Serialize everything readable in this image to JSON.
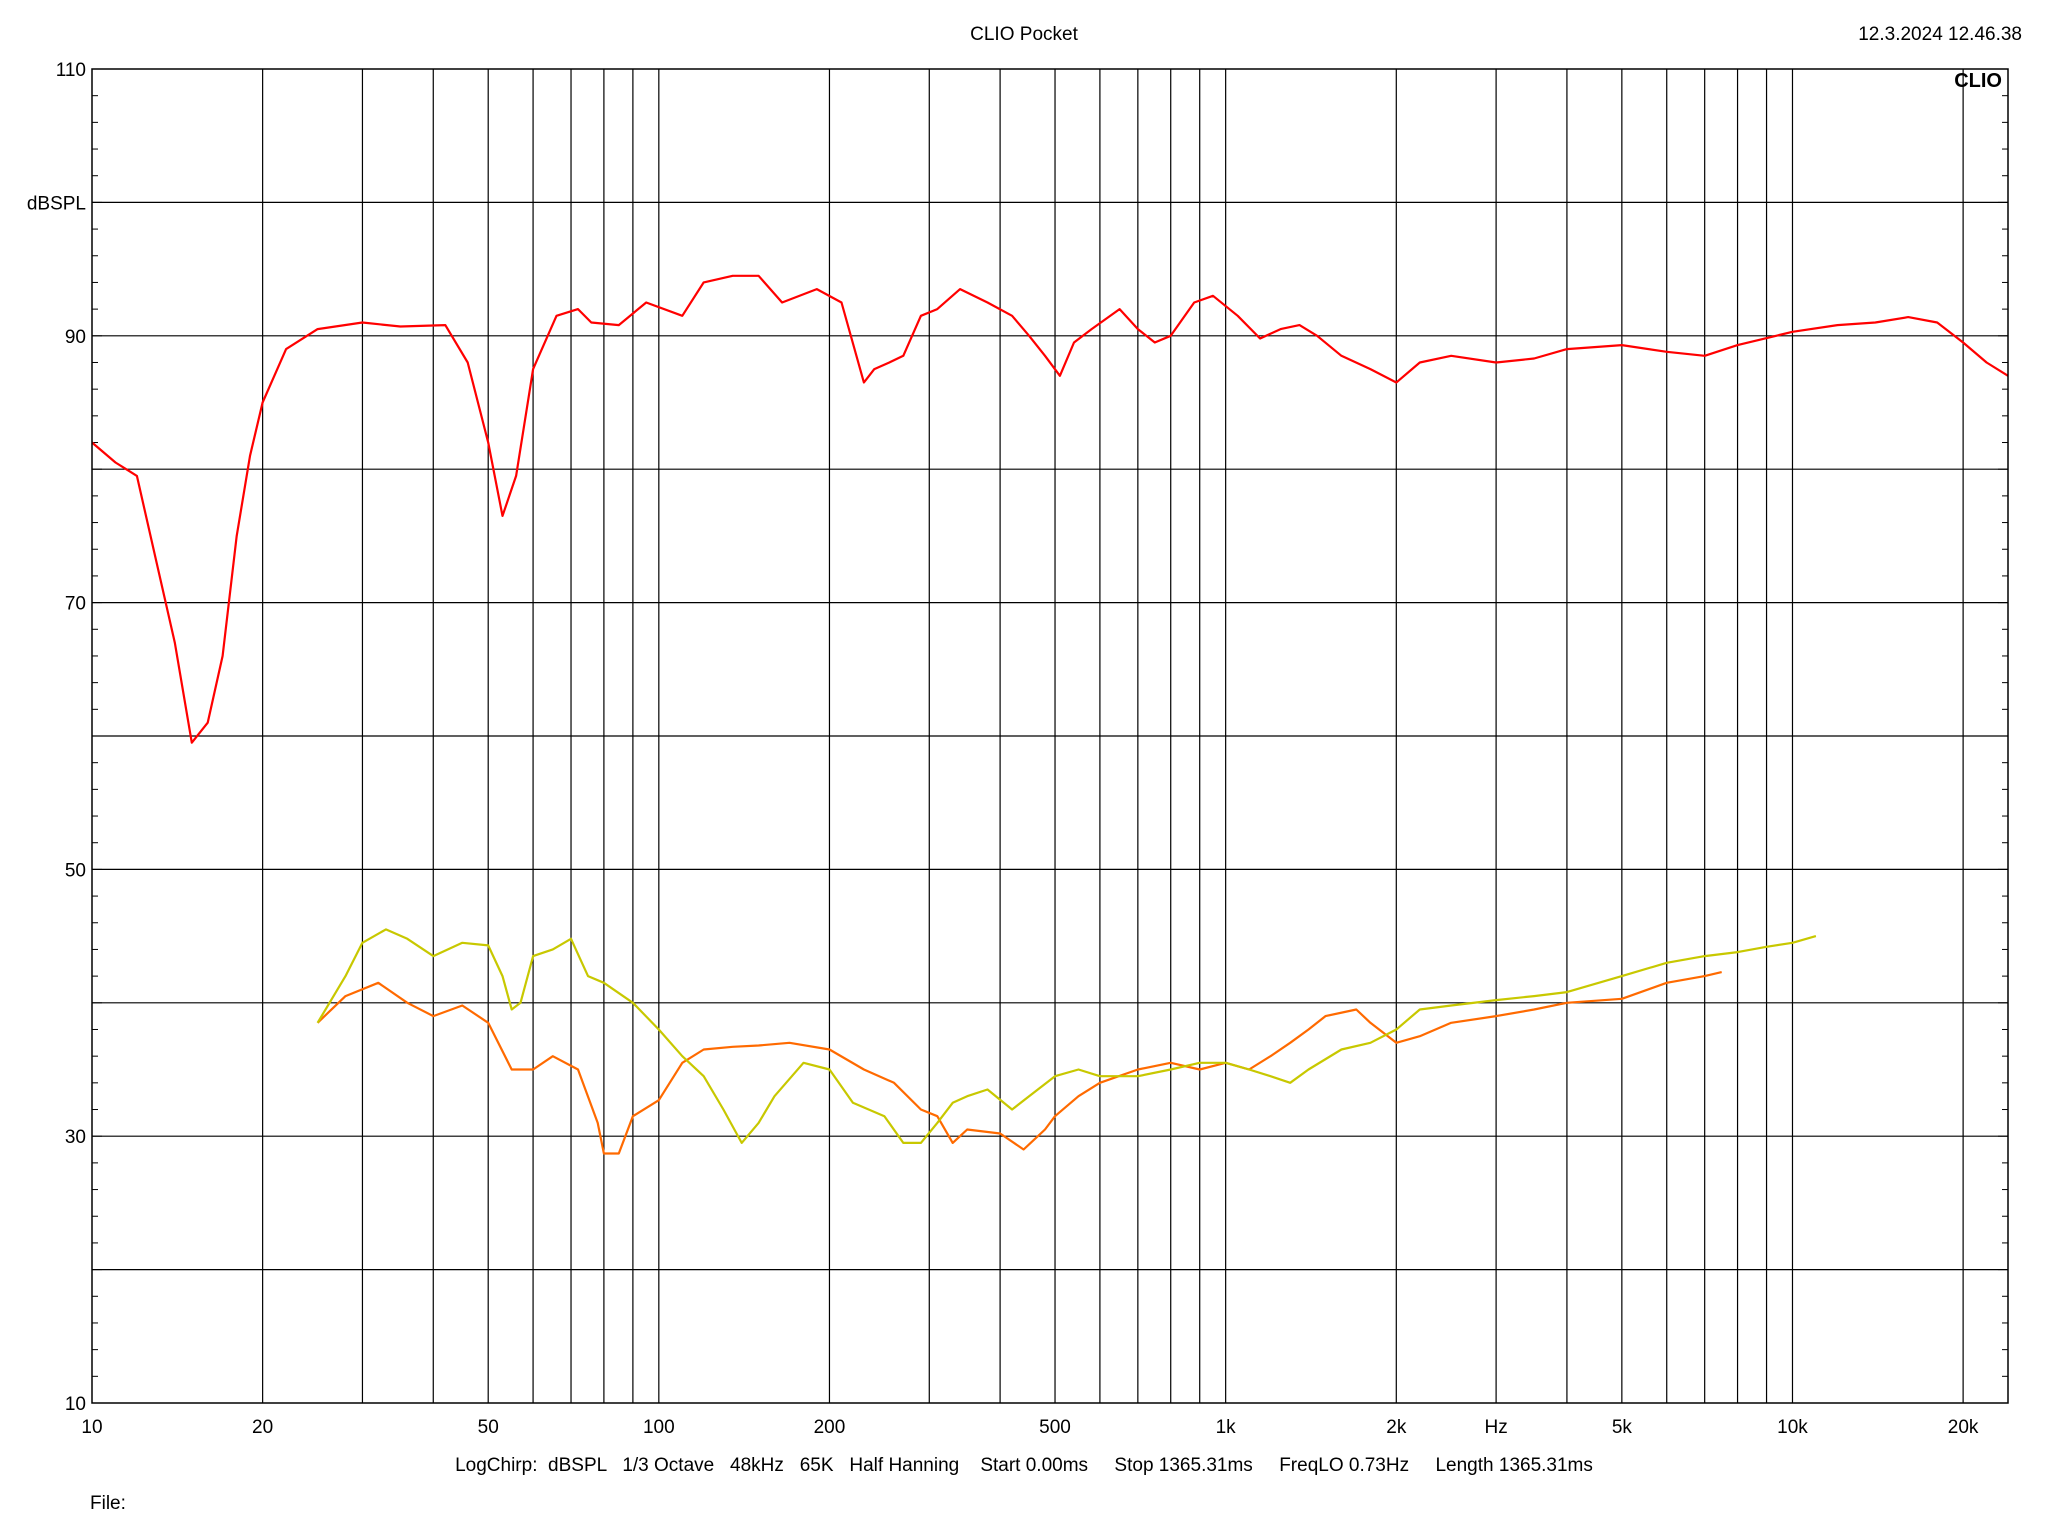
{
  "header": {
    "title": "CLIO Pocket",
    "timestamp": "12.3.2024 12.46.38",
    "brand": "CLIO"
  },
  "footer": {
    "settings": "LogChirp:  dBSPL   1/3 Octave   48kHz   65K   Half Hanning    Start 0.00ms     Stop 1365.31ms     FreqLO 0.73Hz     Length 1365.31ms",
    "file_label": "File:"
  },
  "colors": {
    "grid": "#000000",
    "red_series": "#ff0000",
    "orange_series": "#ff6a00",
    "yellow_series": "#c8c800"
  },
  "chart_data": {
    "type": "line",
    "title": "CLIO Pocket",
    "xlabel": "Hz",
    "ylabel": "dBSPL",
    "x_scale": "log",
    "xlim": [
      10,
      24000
    ],
    "ylim": [
      10,
      110
    ],
    "grid": true,
    "x_tick_labels": [
      {
        "value": 10,
        "label": "10"
      },
      {
        "value": 20,
        "label": "20"
      },
      {
        "value": 50,
        "label": "50"
      },
      {
        "value": 100,
        "label": "100"
      },
      {
        "value": 200,
        "label": "200"
      },
      {
        "value": 500,
        "label": "500"
      },
      {
        "value": 1000,
        "label": "1k"
      },
      {
        "value": 2000,
        "label": "2k"
      },
      {
        "value": 5000,
        "label": "5k"
      },
      {
        "value": 10000,
        "label": "10k"
      },
      {
        "value": 20000,
        "label": "20k"
      }
    ],
    "x_unit_label": {
      "value": 3000,
      "label": "Hz"
    },
    "y_tick_labels": [
      {
        "value": 110,
        "label": "110"
      },
      {
        "value": 90,
        "label": "90"
      },
      {
        "value": 70,
        "label": "70"
      },
      {
        "value": 50,
        "label": "50"
      },
      {
        "value": 30,
        "label": "30"
      },
      {
        "value": 10,
        "label": "10"
      }
    ],
    "y_unit_label": {
      "value": 100,
      "label": "dBSPL"
    },
    "series": [
      {
        "color": "#ff0000",
        "points": [
          [
            10,
            82
          ],
          [
            11,
            80.5
          ],
          [
            12,
            79.5
          ],
          [
            13,
            73
          ],
          [
            14,
            67
          ],
          [
            15,
            59.5
          ],
          [
            16,
            61
          ],
          [
            17,
            66
          ],
          [
            18,
            75
          ],
          [
            19,
            81
          ],
          [
            20,
            85
          ],
          [
            22,
            89
          ],
          [
            25,
            90.5
          ],
          [
            30,
            91
          ],
          [
            35,
            90.7
          ],
          [
            42,
            90.8
          ],
          [
            46,
            88
          ],
          [
            50,
            82
          ],
          [
            53,
            76.5
          ],
          [
            56,
            79.5
          ],
          [
            60,
            87.5
          ],
          [
            66,
            91.5
          ],
          [
            72,
            92
          ],
          [
            76,
            91
          ],
          [
            85,
            90.8
          ],
          [
            95,
            92.5
          ],
          [
            110,
            91.5
          ],
          [
            120,
            94
          ],
          [
            135,
            94.5
          ],
          [
            150,
            94.5
          ],
          [
            165,
            92.5
          ],
          [
            190,
            93.5
          ],
          [
            210,
            92.5
          ],
          [
            230,
            86.5
          ],
          [
            240,
            87.5
          ],
          [
            255,
            88
          ],
          [
            270,
            88.5
          ],
          [
            290,
            91.5
          ],
          [
            310,
            92
          ],
          [
            340,
            93.5
          ],
          [
            380,
            92.5
          ],
          [
            420,
            91.5
          ],
          [
            450,
            90
          ],
          [
            480,
            88.5
          ],
          [
            510,
            87
          ],
          [
            540,
            89.5
          ],
          [
            580,
            90.5
          ],
          [
            650,
            92
          ],
          [
            700,
            90.5
          ],
          [
            750,
            89.5
          ],
          [
            800,
            90
          ],
          [
            880,
            92.5
          ],
          [
            950,
            93
          ],
          [
            1050,
            91.5
          ],
          [
            1150,
            89.8
          ],
          [
            1250,
            90.5
          ],
          [
            1350,
            90.8
          ],
          [
            1450,
            90
          ],
          [
            1600,
            88.5
          ],
          [
            1800,
            87.5
          ],
          [
            2000,
            86.5
          ],
          [
            2200,
            88
          ],
          [
            2500,
            88.5
          ],
          [
            3000,
            88
          ],
          [
            3500,
            88.3
          ],
          [
            4000,
            89
          ],
          [
            5000,
            89.3
          ],
          [
            6000,
            88.8
          ],
          [
            7000,
            88.5
          ],
          [
            8000,
            89.3
          ],
          [
            10000,
            90.3
          ],
          [
            12000,
            90.8
          ],
          [
            14000,
            91
          ],
          [
            16000,
            91.4
          ],
          [
            18000,
            91
          ],
          [
            20000,
            89.5
          ],
          [
            22000,
            88
          ],
          [
            24000,
            87
          ]
        ]
      },
      {
        "color": "#ff6a00",
        "points": [
          [
            25,
            38.5
          ],
          [
            28,
            40.5
          ],
          [
            32,
            41.5
          ],
          [
            36,
            40
          ],
          [
            40,
            39
          ],
          [
            45,
            39.8
          ],
          [
            50,
            38.5
          ],
          [
            55,
            35
          ],
          [
            60,
            35
          ],
          [
            65,
            36
          ],
          [
            72,
            35
          ],
          [
            78,
            31
          ],
          [
            80,
            28.7
          ],
          [
            85,
            28.7
          ],
          [
            90,
            31.5
          ],
          [
            100,
            32.7
          ],
          [
            110,
            35.5
          ],
          [
            120,
            36.5
          ],
          [
            135,
            36.7
          ],
          [
            150,
            36.8
          ],
          [
            170,
            37
          ],
          [
            200,
            36.5
          ],
          [
            230,
            35
          ],
          [
            260,
            34
          ],
          [
            290,
            32
          ],
          [
            310,
            31.5
          ],
          [
            330,
            29.5
          ],
          [
            350,
            30.5
          ],
          [
            400,
            30.2
          ],
          [
            440,
            29
          ],
          [
            480,
            30.5
          ],
          [
            500,
            31.5
          ],
          [
            550,
            33
          ],
          [
            600,
            34
          ],
          [
            700,
            35
          ],
          [
            800,
            35.5
          ],
          [
            900,
            35
          ],
          [
            1000,
            35.5
          ],
          [
            1100,
            35
          ],
          [
            1200,
            36
          ],
          [
            1300,
            37
          ],
          [
            1400,
            38
          ],
          [
            1500,
            39
          ],
          [
            1700,
            39.5
          ],
          [
            1800,
            38.5
          ],
          [
            2000,
            37
          ],
          [
            2200,
            37.5
          ],
          [
            2500,
            38.5
          ],
          [
            3000,
            39
          ],
          [
            3500,
            39.5
          ],
          [
            4000,
            40
          ],
          [
            5000,
            40.3
          ],
          [
            6000,
            41.5
          ],
          [
            7000,
            42
          ],
          [
            7500,
            42.3
          ]
        ]
      },
      {
        "color": "#c8c800",
        "points": [
          [
            25,
            38.5
          ],
          [
            28,
            42
          ],
          [
            30,
            44.5
          ],
          [
            33,
            45.5
          ],
          [
            36,
            44.8
          ],
          [
            40,
            43.5
          ],
          [
            45,
            44.5
          ],
          [
            50,
            44.3
          ],
          [
            53,
            42
          ],
          [
            55,
            39.5
          ],
          [
            57,
            40
          ],
          [
            60,
            43.5
          ],
          [
            65,
            44
          ],
          [
            70,
            44.8
          ],
          [
            75,
            42
          ],
          [
            80,
            41.5
          ],
          [
            90,
            40
          ],
          [
            100,
            38
          ],
          [
            110,
            36
          ],
          [
            120,
            34.5
          ],
          [
            130,
            32
          ],
          [
            140,
            29.5
          ],
          [
            150,
            31
          ],
          [
            160,
            33
          ],
          [
            180,
            35.5
          ],
          [
            200,
            35
          ],
          [
            220,
            32.5
          ],
          [
            250,
            31.5
          ],
          [
            270,
            29.5
          ],
          [
            290,
            29.5
          ],
          [
            310,
            31
          ],
          [
            330,
            32.5
          ],
          [
            350,
            33
          ],
          [
            380,
            33.5
          ],
          [
            420,
            32
          ],
          [
            450,
            33
          ],
          [
            500,
            34.5
          ],
          [
            550,
            35
          ],
          [
            600,
            34.5
          ],
          [
            700,
            34.5
          ],
          [
            800,
            35
          ],
          [
            900,
            35.5
          ],
          [
            1000,
            35.5
          ],
          [
            1100,
            35
          ],
          [
            1200,
            34.5
          ],
          [
            1300,
            34
          ],
          [
            1400,
            35
          ],
          [
            1600,
            36.5
          ],
          [
            1800,
            37
          ],
          [
            2000,
            38
          ],
          [
            2200,
            39.5
          ],
          [
            2500,
            39.8
          ],
          [
            3000,
            40.2
          ],
          [
            3500,
            40.5
          ],
          [
            4000,
            40.8
          ],
          [
            5000,
            42
          ],
          [
            6000,
            43
          ],
          [
            7000,
            43.5
          ],
          [
            8000,
            43.8
          ],
          [
            9000,
            44.2
          ],
          [
            10000,
            44.5
          ],
          [
            11000,
            45
          ]
        ]
      }
    ]
  }
}
